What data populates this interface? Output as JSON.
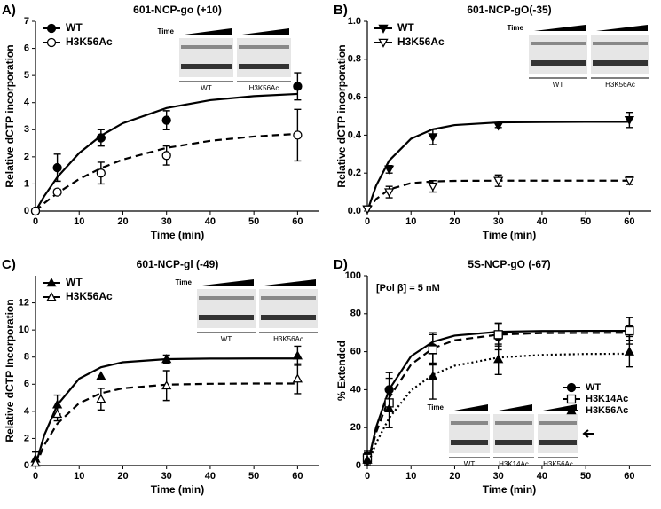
{
  "chart_data": [
    {
      "type": "line",
      "panel": "A)",
      "title": "601-NCP-go (+10)",
      "x_label": "Time (min)",
      "y_label": "Relative dCTP incorporation",
      "xlim": [
        0,
        65
      ],
      "xticks": [
        0,
        10,
        20,
        30,
        40,
        50,
        60
      ],
      "ylim": [
        0,
        7
      ],
      "yticks": [
        0,
        1,
        2,
        3,
        4,
        5,
        6,
        7
      ],
      "legend": "upper left",
      "x": [
        0,
        5,
        15,
        30,
        60
      ],
      "fit_x": [
        0,
        2,
        5,
        10,
        15,
        20,
        30,
        40,
        50,
        60
      ],
      "series": [
        {
          "name": "WT",
          "color": "#000000",
          "marker": "circle",
          "filled": true,
          "dash": "solid",
          "values": [
            0,
            1.6,
            2.7,
            3.35,
            4.6
          ],
          "errors": [
            0,
            0.5,
            0.3,
            0.35,
            0.5
          ],
          "fit": [
            0,
            0.55,
            1.25,
            2.14,
            2.78,
            3.24,
            3.8,
            4.09,
            4.24,
            4.32
          ]
        },
        {
          "name": "H3K56Ac",
          "color": "#000000",
          "marker": "circle",
          "filled": false,
          "dash": "dashed",
          "values": [
            0,
            0.7,
            1.4,
            2.05,
            2.8
          ],
          "errors": [
            0,
            0.1,
            0.4,
            0.35,
            0.95
          ],
          "fit": [
            0,
            0.29,
            0.66,
            1.18,
            1.58,
            1.9,
            2.33,
            2.59,
            2.75,
            2.85
          ]
        }
      ],
      "inset": {
        "label": "Time",
        "lanes": [
          "WT",
          "H3K56Ac"
        ]
      }
    },
    {
      "type": "line",
      "panel": "B)",
      "title": "601-NCP-gO(-35)",
      "x_label": "Time (min)",
      "y_label": "Relative dCTP incorporation",
      "xlim": [
        0,
        65
      ],
      "xticks": [
        0,
        10,
        20,
        30,
        40,
        50,
        60
      ],
      "ylim": [
        0,
        1
      ],
      "yticks": [
        {
          "value": 0,
          "label": "0.0"
        },
        0.2,
        0.4,
        0.6,
        0.8,
        {
          "value": 1,
          "label": "1.0"
        }
      ],
      "legend": "upper left",
      "x": [
        0,
        5,
        15,
        30,
        60
      ],
      "fit_x": [
        0,
        2,
        5,
        10,
        15,
        20,
        30,
        40,
        50,
        60
      ],
      "series": [
        {
          "name": "WT",
          "color": "#000000",
          "marker": "triangle-down",
          "filled": true,
          "dash": "solid",
          "values": [
            0.01,
            0.22,
            0.39,
            0.45,
            0.48
          ],
          "errors": [
            0,
            0.02,
            0.04,
            0.01,
            0.04
          ],
          "fit": [
            0,
            0.133,
            0.266,
            0.381,
            0.431,
            0.453,
            0.467,
            0.469,
            0.47,
            0.47
          ]
        },
        {
          "name": "H3K56Ac",
          "color": "#000000",
          "marker": "triangle-down",
          "filled": false,
          "dash": "dashed",
          "values": [
            0.01,
            0.1,
            0.13,
            0.16,
            0.16
          ],
          "errors": [
            0,
            0.03,
            0.03,
            0.03,
            0.02
          ],
          "fit": [
            0,
            0.063,
            0.114,
            0.147,
            0.156,
            0.159,
            0.16,
            0.16,
            0.16,
            0.16
          ]
        }
      ],
      "inset": {
        "label": "Time",
        "lanes": [
          "WT",
          "H3K56Ac"
        ]
      }
    },
    {
      "type": "line",
      "panel": "C)",
      "title": "601-NCP-gl (-49)",
      "x_label": "Time (min)",
      "y_label": "Relative dCTP Incorporation",
      "xlim": [
        0,
        65
      ],
      "xticks": [
        0,
        10,
        20,
        30,
        40,
        50,
        60
      ],
      "ylim": [
        0,
        14
      ],
      "yticks": [
        0,
        2,
        4,
        6,
        8,
        10,
        12
      ],
      "legend": "upper left",
      "x": [
        0,
        5,
        15,
        30,
        60
      ],
      "fit_x": [
        0,
        2,
        5,
        10,
        15,
        20,
        30,
        40,
        50,
        60
      ],
      "series": [
        {
          "name": "WT",
          "color": "#000000",
          "marker": "triangle-up",
          "filled": true,
          "dash": "solid",
          "values": [
            0.5,
            4.5,
            6.6,
            7.85,
            8.1
          ],
          "errors": [
            0.5,
            0.7,
            0,
            0.3,
            0.7
          ],
          "fit": [
            0,
            2.24,
            4.47,
            6.41,
            7.25,
            7.62,
            7.85,
            7.89,
            7.9,
            7.9
          ]
        },
        {
          "name": "H3K56Ac",
          "color": "#000000",
          "marker": "triangle-up",
          "filled": false,
          "dash": "dashed",
          "values": [
            0.2,
            3.8,
            4.9,
            5.9,
            6.4
          ],
          "errors": [
            0,
            0.5,
            0.8,
            1.1,
            1.1
          ],
          "fit": [
            0,
            1.5,
            3.09,
            4.6,
            5.34,
            5.7,
            5.97,
            6.03,
            6.05,
            6.05
          ]
        }
      ],
      "inset": {
        "label": "Time",
        "lanes": [
          "WT",
          "H3K56Ac"
        ]
      }
    },
    {
      "type": "line",
      "panel": "D)",
      "title": "5S-NCP-gO (-67)",
      "x_label": "Time (min)",
      "y_label": "% Extended",
      "annotation": "[Pol β] = 5 nM",
      "xlim": [
        0,
        65
      ],
      "xticks": [
        0,
        10,
        20,
        30,
        40,
        50,
        60
      ],
      "ylim": [
        0,
        100
      ],
      "yticks": [
        0,
        20,
        40,
        60,
        80,
        100
      ],
      "legend": "lower right",
      "x": [
        0,
        5,
        15,
        30,
        60
      ],
      "fit_x": [
        0,
        2,
        5,
        10,
        15,
        20,
        30,
        40,
        50,
        60
      ],
      "series": [
        {
          "name": "WT",
          "color": "#000000",
          "marker": "circle",
          "filled": true,
          "dash": "solid",
          "values": [
            5,
            40,
            62,
            68,
            72
          ],
          "errors": [
            3,
            9,
            8,
            7,
            6
          ],
          "fit": [
            0,
            20.1,
            40.1,
            57.6,
            65.2,
            68.5,
            70.5,
            70.9,
            71,
            71
          ]
        },
        {
          "name": "H3K14Ac",
          "color": "#000000",
          "marker": "square",
          "filled": false,
          "dash": "dashed",
          "values": [
            4,
            33,
            61,
            69,
            71
          ],
          "errors": [
            3,
            13,
            8,
            6,
            7
          ],
          "fit": [
            0,
            17.4,
            35.7,
            53.2,
            61.8,
            66,
            69,
            69.8,
            69.9,
            70
          ]
        },
        {
          "name": "H3K56Ac",
          "color": "#000000",
          "marker": "triangle-up",
          "filled": true,
          "dash": "dotted",
          "values": [
            3,
            30,
            47,
            56,
            60
          ],
          "errors": [
            3,
            10,
            12,
            8,
            8
          ],
          "fit": [
            0,
            11.8,
            25.1,
            39.6,
            47.9,
            52.6,
            56.9,
            58.3,
            58.8,
            58.9
          ]
        }
      ],
      "inset": {
        "label": "Time",
        "lanes": [
          "WT",
          "H3K14Ac",
          "H3K56Ac"
        ]
      }
    }
  ]
}
